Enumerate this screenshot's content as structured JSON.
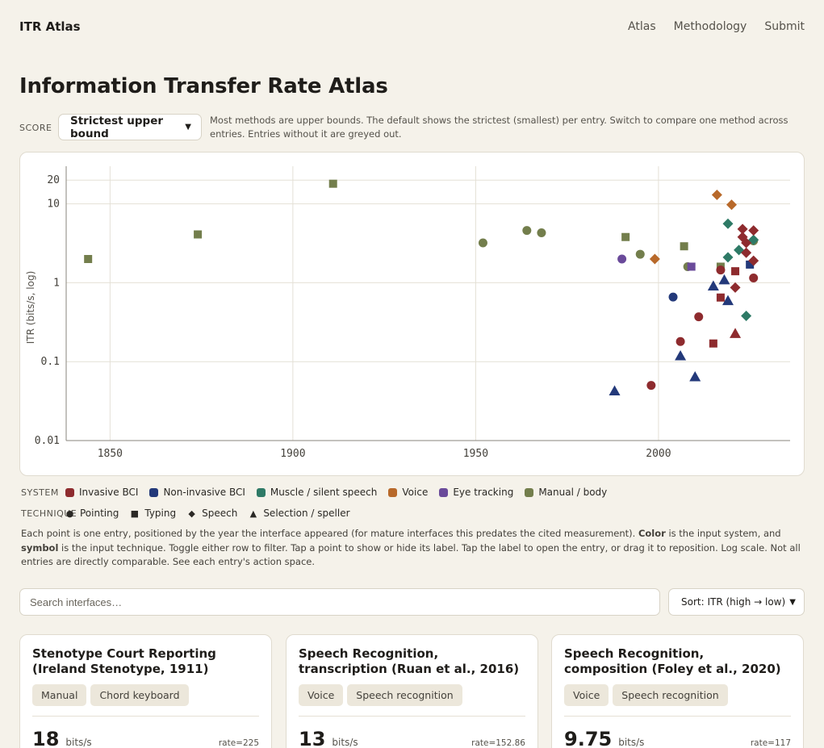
{
  "app": {
    "brand": "ITR Atlas",
    "nav": [
      "Atlas",
      "Methodology",
      "Submit"
    ]
  },
  "page_title": "Information Transfer Rate Atlas",
  "score": {
    "label": "SCORE",
    "selected": "Strictest upper bound",
    "note": "Most methods are upper bounds. The default shows the strictest (smallest) per entry. Switch to compare one method across entries. Entries without it are greyed out."
  },
  "legend": {
    "system_label": "SYSTEM",
    "systems": [
      {
        "name": "Invasive BCI",
        "color": "#8e2b2e"
      },
      {
        "name": "Non-invasive BCI",
        "color": "#23397a"
      },
      {
        "name": "Muscle / silent speech",
        "color": "#2e7a66"
      },
      {
        "name": "Voice",
        "color": "#b8692a"
      },
      {
        "name": "Eye tracking",
        "color": "#6a4a9a"
      },
      {
        "name": "Manual / body",
        "color": "#737e4c"
      }
    ],
    "technique_label": "TECHNIQUE",
    "techniques": [
      {
        "name": "Pointing",
        "shape": "circle"
      },
      {
        "name": "Typing",
        "shape": "square"
      },
      {
        "name": "Speech",
        "shape": "diamond"
      },
      {
        "name": "Selection / speller",
        "shape": "triangle"
      }
    ]
  },
  "description_html": "Each point is one entry, positioned by the year the interface appeared (for mature interfaces this predates the cited measurement). <b>Color</b> is the input system, and <b>symbol</b> is the input technique. Toggle either row to filter. Tap a point to show or hide its label. Tap the label to open the entry, or drag it to reposition. Log scale. Not all entries are directly comparable. See each entry's action space.",
  "search": {
    "placeholder": "Search interfaces…",
    "value": ""
  },
  "sort": {
    "selected": "Sort: ITR (high → low)"
  },
  "chart_data": {
    "type": "scatter",
    "xlabel": "",
    "ylabel": "ITR (bits/s, log)",
    "y_scale": "log",
    "xlim": [
      1838,
      2036
    ],
    "ylim": [
      0.01,
      30
    ],
    "x_ticks": [
      1850,
      1900,
      1950,
      2000
    ],
    "y_ticks": [
      {
        "value": 20,
        "label": "20"
      },
      {
        "value": 10,
        "label": "10"
      },
      {
        "value": 1,
        "label": "1"
      },
      {
        "value": 0.1,
        "label": "0.1"
      },
      {
        "value": 0.01,
        "label": "0.01"
      }
    ],
    "grid": true,
    "points": [
      {
        "x": 1844,
        "y": 2.0,
        "system": "Manual / body",
        "technique": "Typing"
      },
      {
        "x": 1874,
        "y": 4.1,
        "system": "Manual / body",
        "technique": "Typing"
      },
      {
        "x": 1911,
        "y": 18,
        "system": "Manual / body",
        "technique": "Typing"
      },
      {
        "x": 1952,
        "y": 3.2,
        "system": "Manual / body",
        "technique": "Pointing"
      },
      {
        "x": 1964,
        "y": 4.6,
        "system": "Manual / body",
        "technique": "Pointing"
      },
      {
        "x": 1968,
        "y": 4.3,
        "system": "Manual / body",
        "technique": "Pointing"
      },
      {
        "x": 1991,
        "y": 3.8,
        "system": "Manual / body",
        "technique": "Typing"
      },
      {
        "x": 1995,
        "y": 2.3,
        "system": "Manual / body",
        "technique": "Pointing"
      },
      {
        "x": 2007,
        "y": 2.9,
        "system": "Manual / body",
        "technique": "Typing"
      },
      {
        "x": 2008,
        "y": 1.6,
        "system": "Manual / body",
        "technique": "Pointing"
      },
      {
        "x": 2017,
        "y": 1.6,
        "system": "Manual / body",
        "technique": "Typing"
      },
      {
        "x": 2026,
        "y": 3.4,
        "system": "Manual / body",
        "technique": "Pointing"
      },
      {
        "x": 1990,
        "y": 2.0,
        "system": "Eye tracking",
        "technique": "Pointing"
      },
      {
        "x": 2009,
        "y": 1.6,
        "system": "Eye tracking",
        "technique": "Typing"
      },
      {
        "x": 1999,
        "y": 2.0,
        "system": "Voice",
        "technique": "Speech"
      },
      {
        "x": 2016,
        "y": 13,
        "system": "Voice",
        "technique": "Speech"
      },
      {
        "x": 2020,
        "y": 9.75,
        "system": "Voice",
        "technique": "Speech"
      },
      {
        "x": 2019,
        "y": 5.6,
        "system": "Muscle / silent speech",
        "technique": "Speech"
      },
      {
        "x": 2022,
        "y": 2.6,
        "system": "Muscle / silent speech",
        "technique": "Speech"
      },
      {
        "x": 2019,
        "y": 2.1,
        "system": "Muscle / silent speech",
        "technique": "Speech"
      },
      {
        "x": 2026,
        "y": 3.5,
        "system": "Muscle / silent speech",
        "technique": "Speech"
      },
      {
        "x": 2024,
        "y": 0.38,
        "system": "Muscle / silent speech",
        "technique": "Speech"
      },
      {
        "x": 2004,
        "y": 0.66,
        "system": "Non-invasive BCI",
        "technique": "Pointing"
      },
      {
        "x": 2025,
        "y": 1.7,
        "system": "Non-invasive BCI",
        "technique": "Typing"
      },
      {
        "x": 1988,
        "y": 0.043,
        "system": "Non-invasive BCI",
        "technique": "Selection / speller"
      },
      {
        "x": 2006,
        "y": 0.12,
        "system": "Non-invasive BCI",
        "technique": "Selection / speller"
      },
      {
        "x": 2010,
        "y": 0.065,
        "system": "Non-invasive BCI",
        "technique": "Selection / speller"
      },
      {
        "x": 2015,
        "y": 0.92,
        "system": "Non-invasive BCI",
        "technique": "Selection / speller"
      },
      {
        "x": 2018,
        "y": 1.1,
        "system": "Non-invasive BCI",
        "technique": "Selection / speller"
      },
      {
        "x": 2019,
        "y": 0.6,
        "system": "Non-invasive BCI",
        "technique": "Selection / speller"
      },
      {
        "x": 1998,
        "y": 0.05,
        "system": "Invasive BCI",
        "technique": "Pointing"
      },
      {
        "x": 2006,
        "y": 0.18,
        "system": "Invasive BCI",
        "technique": "Pointing"
      },
      {
        "x": 2011,
        "y": 0.37,
        "system": "Invasive BCI",
        "technique": "Pointing"
      },
      {
        "x": 2017,
        "y": 1.45,
        "system": "Invasive BCI",
        "technique": "Pointing"
      },
      {
        "x": 2026,
        "y": 1.15,
        "system": "Invasive BCI",
        "technique": "Pointing"
      },
      {
        "x": 2015,
        "y": 0.17,
        "system": "Invasive BCI",
        "technique": "Typing"
      },
      {
        "x": 2017,
        "y": 0.65,
        "system": "Invasive BCI",
        "technique": "Typing"
      },
      {
        "x": 2021,
        "y": 1.4,
        "system": "Invasive BCI",
        "technique": "Typing"
      },
      {
        "x": 2021,
        "y": 0.23,
        "system": "Invasive BCI",
        "technique": "Selection / speller"
      },
      {
        "x": 2021,
        "y": 0.87,
        "system": "Invasive BCI",
        "technique": "Speech"
      },
      {
        "x": 2023,
        "y": 4.8,
        "system": "Invasive BCI",
        "technique": "Speech"
      },
      {
        "x": 2023,
        "y": 3.8,
        "system": "Invasive BCI",
        "technique": "Speech"
      },
      {
        "x": 2024,
        "y": 3.2,
        "system": "Invasive BCI",
        "technique": "Speech"
      },
      {
        "x": 2024,
        "y": 2.4,
        "system": "Invasive BCI",
        "technique": "Speech"
      },
      {
        "x": 2026,
        "y": 4.6,
        "system": "Invasive BCI",
        "technique": "Speech"
      },
      {
        "x": 2026,
        "y": 1.9,
        "system": "Invasive BCI",
        "technique": "Speech"
      }
    ]
  },
  "cards": [
    {
      "title": "Stenotype Court Reporting (Ireland Stenotype, 1911)",
      "tags": [
        "Manual",
        "Chord keyboard"
      ],
      "itr": "18",
      "unit": "bits/s",
      "raw": "rate=225"
    },
    {
      "title": "Speech Recognition, transcription (Ruan et al., 2016)",
      "tags": [
        "Voice",
        "Speech recognition"
      ],
      "itr": "13",
      "unit": "bits/s",
      "raw": "rate=152.86"
    },
    {
      "title": "Speech Recognition, composition (Foley et al., 2020)",
      "tags": [
        "Voice",
        "Speech recognition"
      ],
      "itr": "9.75",
      "unit": "bits/s",
      "raw": "rate=117"
    }
  ]
}
